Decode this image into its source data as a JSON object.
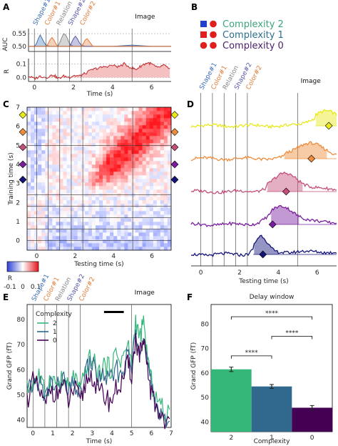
{
  "panels": {
    "a": "A",
    "b": "B",
    "c": "C",
    "d": "D",
    "e": "E",
    "f": "F"
  },
  "events": [
    {
      "label": "Shape#1",
      "t": 0,
      "color": "#3b6fb6"
    },
    {
      "label": "Color#1",
      "t": 0.6,
      "color": "#e07b39"
    },
    {
      "label": "Relation",
      "t": 1.2,
      "color": "#888888"
    },
    {
      "label": "Shape#2",
      "t": 1.8,
      "color": "#5a5aa8"
    },
    {
      "label": "Color#2",
      "t": 2.4,
      "color": "#e07b39"
    },
    {
      "label": "Image",
      "t": 5.0,
      "color": "#111111"
    }
  ],
  "legend_b": {
    "items": [
      {
        "label": "Complexity 2",
        "color": "#3aa57a"
      },
      {
        "label": "Complexity 1",
        "color": "#2b6f8a"
      },
      {
        "label": "Complexity 0",
        "color": "#4b1d6b"
      }
    ]
  },
  "complexity_colors": {
    "2": "#35b779",
    "1": "#31688e",
    "0": "#440154"
  },
  "chart_data": [
    {
      "id": "A",
      "type": "line",
      "xlabel": "Time (s)",
      "xticks": [
        0,
        2,
        4,
        6
      ],
      "top": {
        "ylabel": "AUC",
        "yticks": [
          0.5,
          0.55
        ],
        "ylim": [
          0.48,
          0.57
        ],
        "series": [
          {
            "name": "Shape#1",
            "color": "#3b6fb6",
            "t": [
              -0.3,
              0,
              0.1,
              0.2,
              0.3,
              0.4,
              0.5,
              0.6,
              0.8,
              1.0,
              1.5,
              2,
              3,
              4,
              5,
              6,
              7
            ],
            "y": [
              0.5,
              0.5,
              0.51,
              0.53,
              0.545,
              0.53,
              0.515,
              0.505,
              0.5,
              0.5,
              0.5,
              0.5,
              0.5,
              0.5,
              0.505,
              0.5,
              0.5
            ]
          },
          {
            "name": "Color#1",
            "color": "#e07b39",
            "t": [
              -0.3,
              0,
              0.5,
              0.6,
              0.7,
              0.8,
              0.9,
              1.0,
              1.1,
              1.2,
              1.5,
              2,
              3,
              4,
              5,
              6,
              7
            ],
            "y": [
              0.5,
              0.5,
              0.5,
              0.5,
              0.51,
              0.525,
              0.535,
              0.525,
              0.51,
              0.5,
              0.5,
              0.5,
              0.5,
              0.5,
              0.5,
              0.5,
              0.5
            ]
          },
          {
            "name": "Relation",
            "color": "#888888",
            "t": [
              -0.3,
              0,
              1.0,
              1.2,
              1.3,
              1.4,
              1.5,
              1.6,
              1.7,
              1.8,
              2.0,
              2.5,
              3,
              4,
              5,
              6,
              7
            ],
            "y": [
              0.5,
              0.5,
              0.5,
              0.5,
              0.515,
              0.535,
              0.55,
              0.545,
              0.53,
              0.51,
              0.5,
              0.5,
              0.5,
              0.5,
              0.5,
              0.5,
              0.5
            ]
          },
          {
            "name": "Shape#2",
            "color": "#5a5aa8",
            "t": [
              -0.3,
              0,
              1.6,
              1.8,
              1.9,
              2.0,
              2.1,
              2.2,
              2.3,
              2.4,
              2.6,
              3,
              4,
              5,
              6,
              7
            ],
            "y": [
              0.5,
              0.5,
              0.5,
              0.5,
              0.515,
              0.53,
              0.54,
              0.53,
              0.515,
              0.505,
              0.5,
              0.5,
              0.5,
              0.5,
              0.5,
              0.5
            ]
          },
          {
            "name": "Color#2",
            "color": "#e07b39",
            "t": [
              -0.3,
              0,
              2.2,
              2.4,
              2.5,
              2.6,
              2.7,
              2.8,
              2.9,
              3.0,
              3.2,
              4,
              5,
              6,
              7
            ],
            "y": [
              0.5,
              0.5,
              0.5,
              0.5,
              0.51,
              0.525,
              0.53,
              0.52,
              0.51,
              0.5,
              0.5,
              0.5,
              0.5,
              0.5,
              0.5
            ]
          }
        ]
      },
      "bottom": {
        "ylabel": "R",
        "yticks": [
          0.0,
          0.1
        ],
        "ylim": [
          -0.03,
          0.14
        ],
        "series": [
          {
            "name": "R",
            "color": "#c0282d",
            "t": [
              -0.3,
              0,
              0.3,
              0.6,
              1,
              1.2,
              1.5,
              1.8,
              2,
              2.3,
              2.6,
              3,
              3.3,
              3.6,
              4,
              4.3,
              4.6,
              5,
              5.2,
              5.5,
              5.8,
              6,
              6.3,
              6.6,
              7
            ],
            "y": [
              0.01,
              -0.01,
              0.01,
              0.0,
              0.02,
              -0.01,
              0.01,
              0.0,
              0.015,
              0.01,
              0.03,
              0.06,
              0.07,
              0.08,
              0.09,
              0.08,
              0.1,
              0.07,
              0.06,
              0.09,
              0.11,
              0.1,
              0.07,
              0.09,
              0.06
            ]
          }
        ]
      }
    },
    {
      "id": "C",
      "type": "heatmap",
      "xlabel": "Testing time (s)",
      "ylabel": "Training time (s)",
      "xticks": [
        0,
        2,
        4,
        6
      ],
      "yticks": [
        0,
        1,
        2,
        3,
        4,
        5,
        6,
        7
      ],
      "xlim": [
        -0.5,
        7
      ],
      "ylim": [
        -0.5,
        7
      ],
      "colorbar": {
        "label": "R",
        "ticks": [
          -0.1,
          0.0,
          0.1
        ],
        "low": "#2c3fd1",
        "mid": "#ffffff",
        "high": "#e2161b"
      }
    },
    {
      "id": "D",
      "type": "line",
      "xlabel": "Testing time (s)",
      "xticks": [
        0,
        2,
        4,
        6
      ],
      "xlim": [
        -0.5,
        7
      ],
      "series": [
        {
          "name": "",
          "color": "#e8e81a",
          "peak": 6.4,
          "amp": 0.7,
          "onset": 5.9
        },
        {
          "name": "",
          "color": "#ef8c3c",
          "peak": 5.6,
          "amp": 0.8,
          "onset": 4.3
        },
        {
          "name": "",
          "color": "#c44d7a",
          "peak": 4.4,
          "amp": 0.9,
          "onset": 3.4
        },
        {
          "name": "",
          "color": "#7a1c9e",
          "peak": 4.2,
          "amp": 0.9,
          "onset": 3.6
        },
        {
          "name": "",
          "color": "#14137a",
          "peak": 3.1,
          "amp": 0.9,
          "onset": 2.7
        }
      ],
      "diamonds": [
        6.6,
        5.7,
        4.4,
        3.7,
        3.2
      ]
    },
    {
      "id": "E",
      "type": "line",
      "xlabel": "Time (s)",
      "ylabel": "Grand GFP (fT)",
      "xticks": [
        0,
        1,
        2,
        3,
        4,
        5,
        6,
        7
      ],
      "yticks": [
        40,
        50,
        60,
        70,
        80
      ],
      "xlim": [
        -0.3,
        7
      ],
      "ylim": [
        37,
        86
      ],
      "legend_title": "Complexity",
      "series": [
        {
          "name": "2",
          "color": "#35b779",
          "t": [
            -0.3,
            0,
            0.3,
            0.6,
            0.9,
            1.2,
            1.5,
            1.8,
            2.1,
            2.4,
            2.7,
            3,
            3.3,
            3.6,
            3.9,
            4.2,
            4.5,
            4.8,
            5,
            5.2,
            5.4,
            5.6,
            5.8,
            6,
            6.3,
            6.6,
            7
          ],
          "y": [
            52,
            55,
            58,
            50,
            57,
            54,
            56,
            52,
            58,
            50,
            62,
            65,
            58,
            62,
            60,
            66,
            64,
            70,
            62,
            80,
            72,
            78,
            65,
            55,
            48,
            44,
            40
          ]
        },
        {
          "name": "1",
          "color": "#31688e",
          "t": [
            -0.3,
            0,
            0.3,
            0.6,
            0.9,
            1.2,
            1.5,
            1.8,
            2.1,
            2.4,
            2.7,
            3,
            3.3,
            3.6,
            3.9,
            4.2,
            4.5,
            4.8,
            5,
            5.2,
            5.4,
            5.6,
            5.8,
            6,
            6.3,
            6.6,
            7
          ],
          "y": [
            50,
            54,
            56,
            48,
            55,
            52,
            57,
            50,
            55,
            49,
            60,
            63,
            56,
            58,
            55,
            60,
            58,
            66,
            60,
            76,
            70,
            72,
            62,
            52,
            46,
            42,
            39
          ]
        },
        {
          "name": "0",
          "color": "#440154",
          "t": [
            -0.3,
            0,
            0.3,
            0.6,
            0.9,
            1.2,
            1.5,
            1.8,
            2.1,
            2.4,
            2.7,
            3,
            3.3,
            3.6,
            3.9,
            4.2,
            4.5,
            4.8,
            5,
            5.2,
            5.4,
            5.6,
            5.8,
            6,
            6.3,
            6.6,
            7
          ],
          "y": [
            48,
            55,
            52,
            45,
            53,
            50,
            54,
            47,
            53,
            46,
            56,
            58,
            51,
            50,
            47,
            52,
            55,
            62,
            58,
            72,
            66,
            70,
            60,
            50,
            44,
            41,
            38
          ]
        }
      ],
      "delay_bar": [
        3.6,
        4.6
      ]
    },
    {
      "id": "F",
      "type": "bar",
      "title": "Delay window",
      "xlabel": "Complexity",
      "ylabel": "Grand GFP (fT)",
      "categories": [
        "2",
        "1",
        "0"
      ],
      "values": [
        61.5,
        54.5,
        45.8
      ],
      "errors": [
        0.9,
        0.8,
        0.9
      ],
      "colors": [
        "#35b779",
        "#31688e",
        "#440154"
      ],
      "yticks": [
        40,
        50,
        60,
        70,
        80
      ],
      "ylim": [
        36,
        88
      ],
      "significance": [
        {
          "a": 0,
          "b": 1,
          "label": "****",
          "y": 67
        },
        {
          "a": 1,
          "b": 2,
          "label": "****",
          "y": 75
        },
        {
          "a": 0,
          "b": 2,
          "label": "****",
          "y": 83
        }
      ]
    }
  ]
}
